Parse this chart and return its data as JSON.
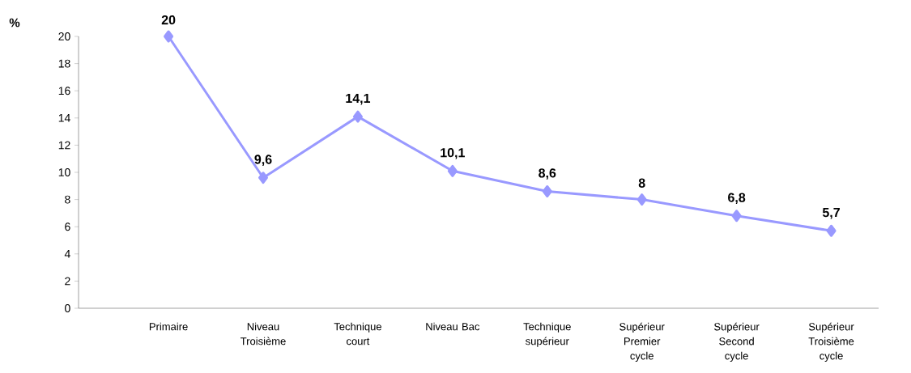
{
  "chart_data": {
    "type": "line",
    "ylabel": "%",
    "categories": [
      "Primaire",
      "Niveau Troisième",
      "Technique court",
      "Niveau Bac",
      "Technique supérieur",
      "Supérieur Premier cycle",
      "Supérieur Second cycle",
      "Supérieur Troisième cycle"
    ],
    "values": [
      20,
      9.6,
      14.1,
      10.1,
      8.6,
      8,
      6.8,
      5.7
    ],
    "value_labels": [
      "20",
      "9,6",
      "14,1",
      "10,1",
      "8,6",
      "8",
      "6,8",
      "5,7"
    ],
    "color": "#9999ff",
    "marker": "diamond",
    "line_style": "solid",
    "ylim": [
      0,
      20
    ],
    "yticks": [
      0,
      2,
      4,
      6,
      8,
      10,
      12,
      14,
      16,
      18,
      20
    ],
    "grid": false
  }
}
